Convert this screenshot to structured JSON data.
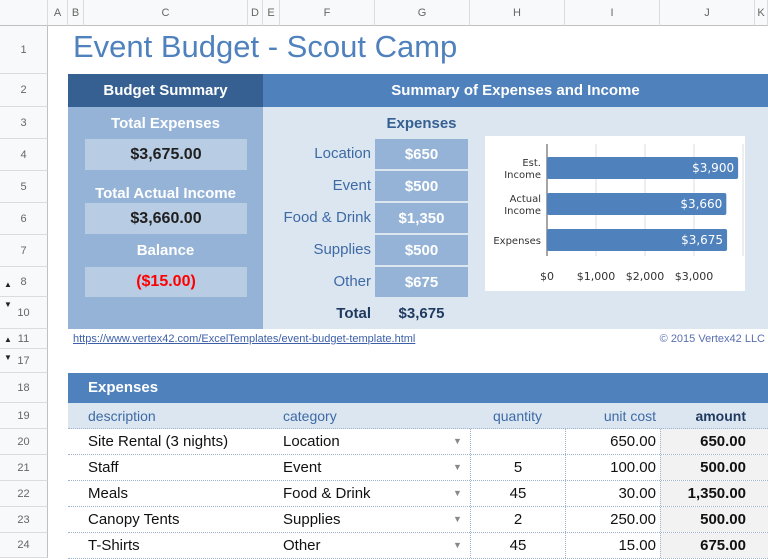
{
  "columns": [
    "A",
    "B",
    "C",
    "D",
    "E",
    "F",
    "G",
    "H",
    "I",
    "J",
    "K"
  ],
  "rows": [
    "1",
    "2",
    "3",
    "4",
    "5",
    "6",
    "7",
    "8",
    "10",
    "11",
    "17",
    "18",
    "19",
    "20",
    "21",
    "22",
    "23",
    "24"
  ],
  "title": "Event Budget - Scout Camp",
  "budget_summary": {
    "header": "Budget Summary",
    "total_expenses_label": "Total Expenses",
    "total_expenses": "$3,675.00",
    "total_income_label": "Total Actual Income",
    "total_income": "$3,660.00",
    "balance_label": "Balance",
    "balance": "($15.00)",
    "balance_color": "#ff0000"
  },
  "summary": {
    "header": "Summary of Expenses and Income",
    "expenses_label": "Expenses",
    "categories": [
      {
        "name": "Location",
        "value": "$650"
      },
      {
        "name": "Event",
        "value": "$500"
      },
      {
        "name": "Food & Drink",
        "value": "$1,350"
      },
      {
        "name": "Supplies",
        "value": "$500"
      },
      {
        "name": "Other",
        "value": "$675"
      }
    ],
    "total_label": "Total",
    "total": "$3,675"
  },
  "chart_data": {
    "type": "bar",
    "orientation": "horizontal",
    "categories": [
      "Est. Income",
      "Actual Income",
      "Expenses"
    ],
    "values": [
      3900,
      3660,
      3675
    ],
    "data_labels": [
      "$3,900",
      "$3,660",
      "$3,675"
    ],
    "xticks": [
      "$0",
      "$1,000",
      "$2,000",
      "$3,000"
    ],
    "xlim": [
      0,
      4000
    ],
    "grid": true,
    "color": "#4f81bd"
  },
  "link": "https://www.vertex42.com/ExcelTemplates/event-budget-template.html",
  "copyright": "© 2015 Vertex42 LLC",
  "expenses": {
    "header": "Expenses",
    "columns": [
      "description",
      "category",
      "quantity",
      "unit cost",
      "amount"
    ],
    "rows": [
      {
        "description": "Site Rental (3 nights)",
        "category": "Location",
        "quantity": "",
        "unit_cost": "650.00",
        "amount": "650.00"
      },
      {
        "description": "Staff",
        "category": "Event",
        "quantity": "5",
        "unit_cost": "100.00",
        "amount": "500.00"
      },
      {
        "description": "Meals",
        "category": "Food & Drink",
        "quantity": "45",
        "unit_cost": "30.00",
        "amount": "1,350.00"
      },
      {
        "description": "Canopy Tents",
        "category": "Supplies",
        "quantity": "2",
        "unit_cost": "250.00",
        "amount": "500.00"
      },
      {
        "description": "T-Shirts",
        "category": "Other",
        "quantity": "45",
        "unit_cost": "15.00",
        "amount": "675.00"
      }
    ]
  }
}
